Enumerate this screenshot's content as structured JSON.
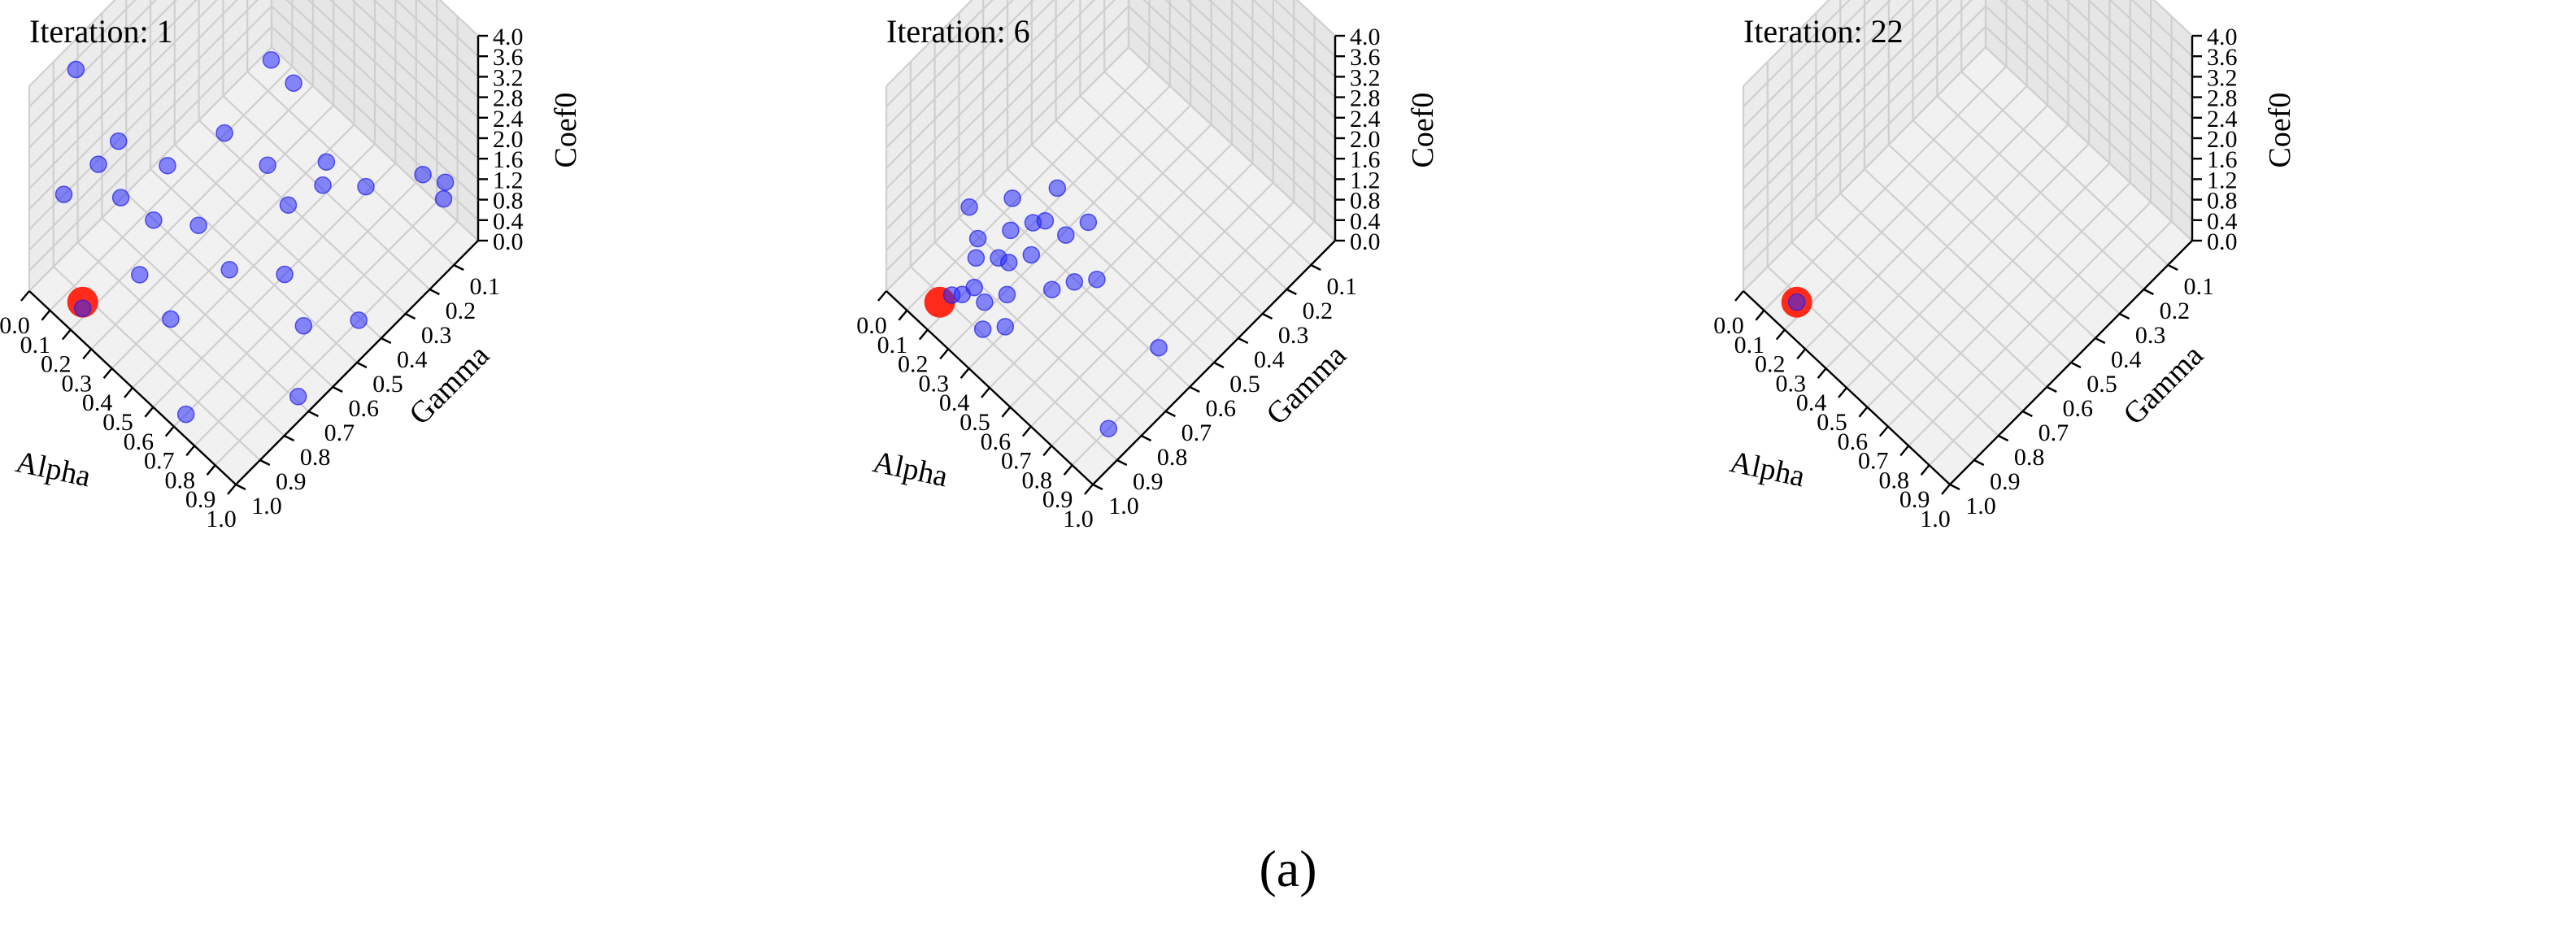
{
  "caption": "(a)",
  "chart_data": [
    {
      "type": "scatter3d",
      "title": "Iteration: 1",
      "xlabel": "Alpha",
      "ylabel": "Gamma",
      "zlabel": "Coef0",
      "xlim": [
        0.0,
        1.0
      ],
      "ylim": [
        0.0,
        1.0
      ],
      "zlim": [
        0.0,
        4.0
      ],
      "xticks": [
        "0.0",
        "0.1",
        "0.2",
        "0.3",
        "0.4",
        "0.5",
        "0.6",
        "0.7",
        "0.8",
        "0.9",
        "1.0"
      ],
      "yticks": [
        "0.1",
        "0.2",
        "0.3",
        "0.4",
        "0.5",
        "0.6",
        "0.7",
        "0.8",
        "0.9",
        "1.0"
      ],
      "zticks": [
        "0.0",
        "0.4",
        "0.8",
        "1.2",
        "1.6",
        "2.0",
        "2.4",
        "2.8",
        "3.2",
        "3.6",
        "4.0"
      ],
      "best_point": {
        "alpha": 0.2,
        "gamma": 0.95,
        "coef0": 0.3
      },
      "points": [
        {
          "alpha": 0.2,
          "gamma": 0.95,
          "coef0": 0.18
        },
        {
          "alpha": 0.05,
          "gamma": 0.9,
          "coef0": 1.6
        },
        {
          "alpha": 0.05,
          "gamma": 0.85,
          "coef0": 3.8
        },
        {
          "alpha": 0.1,
          "gamma": 0.8,
          "coef0": 1.9
        },
        {
          "alpha": 0.08,
          "gamma": 0.7,
          "coef0": 1.8
        },
        {
          "alpha": 0.15,
          "gamma": 0.75,
          "coef0": 1.2
        },
        {
          "alpha": 0.2,
          "gamma": 0.6,
          "coef0": 1.3
        },
        {
          "alpha": 0.25,
          "gamma": 0.7,
          "coef0": 0.9
        },
        {
          "alpha": 0.3,
          "gamma": 0.8,
          "coef0": 0.5
        },
        {
          "alpha": 0.35,
          "gamma": 0.6,
          "coef0": 0.7
        },
        {
          "alpha": 0.3,
          "gamma": 0.45,
          "coef0": 1.6
        },
        {
          "alpha": 0.35,
          "gamma": 0.3,
          "coef0": 2.5
        },
        {
          "alpha": 0.4,
          "gamma": 0.25,
          "coef0": 2.0
        },
        {
          "alpha": 0.45,
          "gamma": 0.4,
          "coef0": 1.3
        },
        {
          "alpha": 0.55,
          "gamma": 0.4,
          "coef0": 0.9
        },
        {
          "alpha": 0.6,
          "gamma": 0.3,
          "coef0": 1.0
        },
        {
          "alpha": 0.5,
          "gamma": 0.6,
          "coef0": 0.4
        },
        {
          "alpha": 0.45,
          "gamma": 0.8,
          "coef0": 0.2
        },
        {
          "alpha": 0.65,
          "gamma": 0.5,
          "coef0": 0.4
        },
        {
          "alpha": 0.75,
          "gamma": 0.25,
          "coef0": 1.3
        },
        {
          "alpha": 0.8,
          "gamma": 0.55,
          "coef0": 0.2
        },
        {
          "alpha": 0.85,
          "gamma": 0.1,
          "coef0": 1.2
        },
        {
          "alpha": 0.95,
          "gamma": 0.1,
          "coef0": 1.1
        },
        {
          "alpha": 0.9,
          "gamma": 0.05,
          "coef0": 1.0
        },
        {
          "alpha": 0.95,
          "gamma": 0.45,
          "coef0": 0.4
        },
        {
          "alpha": 0.95,
          "gamma": 0.7,
          "coef0": 0.1
        },
        {
          "alpha": 0.5,
          "gamma": 0.2,
          "coef0": 0.6
        },
        {
          "alpha": 0.7,
          "gamma": 0.95,
          "coef0": 0.0
        }
      ]
    },
    {
      "type": "scatter3d",
      "title": "Iteration: 6",
      "xlabel": "Alpha",
      "ylabel": "Gamma",
      "zlabel": "Coef0",
      "xlim": [
        0.0,
        1.0
      ],
      "ylim": [
        0.0,
        1.0
      ],
      "zlim": [
        0.0,
        4.0
      ],
      "xticks": [
        "0.0",
        "0.1",
        "0.2",
        "0.3",
        "0.4",
        "0.5",
        "0.6",
        "0.7",
        "0.8",
        "0.9",
        "1.0"
      ],
      "yticks": [
        "0.1",
        "0.2",
        "0.3",
        "0.4",
        "0.5",
        "0.6",
        "0.7",
        "0.8",
        "0.9",
        "1.0"
      ],
      "zticks": [
        "0.0",
        "0.4",
        "0.8",
        "1.2",
        "1.6",
        "2.0",
        "2.4",
        "2.8",
        "3.2",
        "3.6",
        "4.0"
      ],
      "best_point": {
        "alpha": 0.2,
        "gamma": 0.95,
        "coef0": 0.3
      },
      "points": [
        {
          "alpha": 0.05,
          "gamma": 0.7,
          "coef0": 0.4
        },
        {
          "alpha": 0.15,
          "gamma": 0.75,
          "coef0": 0.4
        },
        {
          "alpha": 0.2,
          "gamma": 0.8,
          "coef0": 0.45
        },
        {
          "alpha": 0.25,
          "gamma": 0.75,
          "coef0": 0.4
        },
        {
          "alpha": 0.25,
          "gamma": 0.85,
          "coef0": 0.3
        },
        {
          "alpha": 0.3,
          "gamma": 0.85,
          "coef0": 0.2
        },
        {
          "alpha": 0.2,
          "gamma": 0.9,
          "coef0": 0.2
        },
        {
          "alpha": 0.3,
          "gamma": 0.75,
          "coef0": 0.5
        },
        {
          "alpha": 0.35,
          "gamma": 0.8,
          "coef0": 0.3
        },
        {
          "alpha": 0.25,
          "gamma": 0.7,
          "coef0": 0.7
        },
        {
          "alpha": 0.3,
          "gamma": 0.65,
          "coef0": 0.8
        },
        {
          "alpha": 0.35,
          "gamma": 0.7,
          "coef0": 0.6
        },
        {
          "alpha": 0.2,
          "gamma": 0.65,
          "coef0": 0.9
        },
        {
          "alpha": 0.3,
          "gamma": 0.55,
          "coef0": 1.0
        },
        {
          "alpha": 0.4,
          "gamma": 0.6,
          "coef0": 0.7
        },
        {
          "alpha": 0.45,
          "gamma": 0.7,
          "coef0": 0.3
        },
        {
          "alpha": 0.35,
          "gamma": 0.9,
          "coef0": 0.1
        },
        {
          "alpha": 0.4,
          "gamma": 0.85,
          "coef0": 0.1
        },
        {
          "alpha": 0.45,
          "gamma": 0.55,
          "coef0": 0.9
        },
        {
          "alpha": 0.5,
          "gamma": 0.65,
          "coef0": 0.4
        },
        {
          "alpha": 0.55,
          "gamma": 0.6,
          "coef0": 0.4
        },
        {
          "alpha": 0.3,
          "gamma": 0.6,
          "coef0": 0.6
        },
        {
          "alpha": 0.25,
          "gamma": 0.9,
          "coef0": 0.4
        },
        {
          "alpha": 0.85,
          "gamma": 0.6,
          "coef0": 0.2
        },
        {
          "alpha": 0.9,
          "gamma": 0.85,
          "coef0": 0.0
        }
      ]
    },
    {
      "type": "scatter3d",
      "title": "Iteration: 22",
      "xlabel": "Alpha",
      "ylabel": "Gamma",
      "zlabel": "Coef0",
      "xlim": [
        0.0,
        1.0
      ],
      "ylim": [
        0.0,
        1.0
      ],
      "zlim": [
        0.0,
        4.0
      ],
      "xticks": [
        "0.0",
        "0.1",
        "0.2",
        "0.3",
        "0.4",
        "0.5",
        "0.6",
        "0.7",
        "0.8",
        "0.9",
        "1.0"
      ],
      "yticks": [
        "0.1",
        "0.2",
        "0.3",
        "0.4",
        "0.5",
        "0.6",
        "0.7",
        "0.8",
        "0.9",
        "1.0"
      ],
      "zticks": [
        "0.0",
        "0.4",
        "0.8",
        "1.2",
        "1.6",
        "2.0",
        "2.4",
        "2.8",
        "3.2",
        "3.6",
        "4.0"
      ],
      "best_point": {
        "alpha": 0.2,
        "gamma": 0.95,
        "coef0": 0.3
      },
      "points": [
        {
          "alpha": 0.2,
          "gamma": 0.95,
          "coef0": 0.3
        }
      ]
    }
  ]
}
